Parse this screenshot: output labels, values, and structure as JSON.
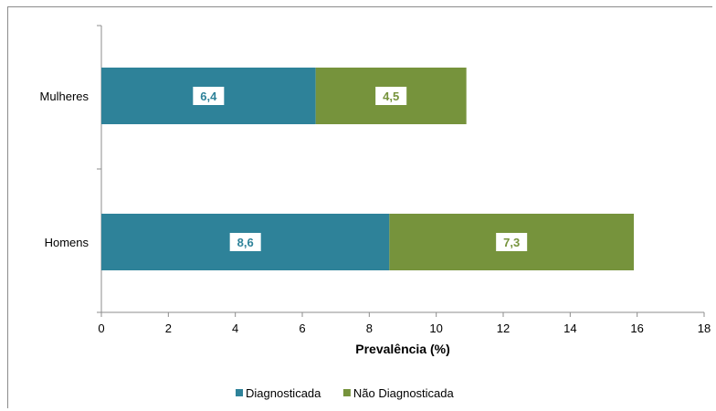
{
  "chart_data": {
    "type": "bar",
    "orientation": "horizontal",
    "stacked": true,
    "categories": [
      "Mulheres",
      "Homens"
    ],
    "series": [
      {
        "name": "Diagnosticada",
        "values": [
          6.4,
          8.6
        ],
        "labels": [
          "6,4",
          "8,6"
        ],
        "color": "#2e8299"
      },
      {
        "name": "Não Diagnosticada",
        "values": [
          4.5,
          7.3
        ],
        "labels": [
          "4,5",
          "7,3"
        ],
        "color": "#76933c"
      }
    ],
    "xlabel": "Prevalência (%)",
    "ylabel": "",
    "xlim": [
      0,
      18
    ],
    "xticks": [
      "0",
      "2",
      "4",
      "6",
      "8",
      "10",
      "12",
      "14",
      "16",
      "18"
    ],
    "grid": false,
    "legend": "bottom"
  }
}
